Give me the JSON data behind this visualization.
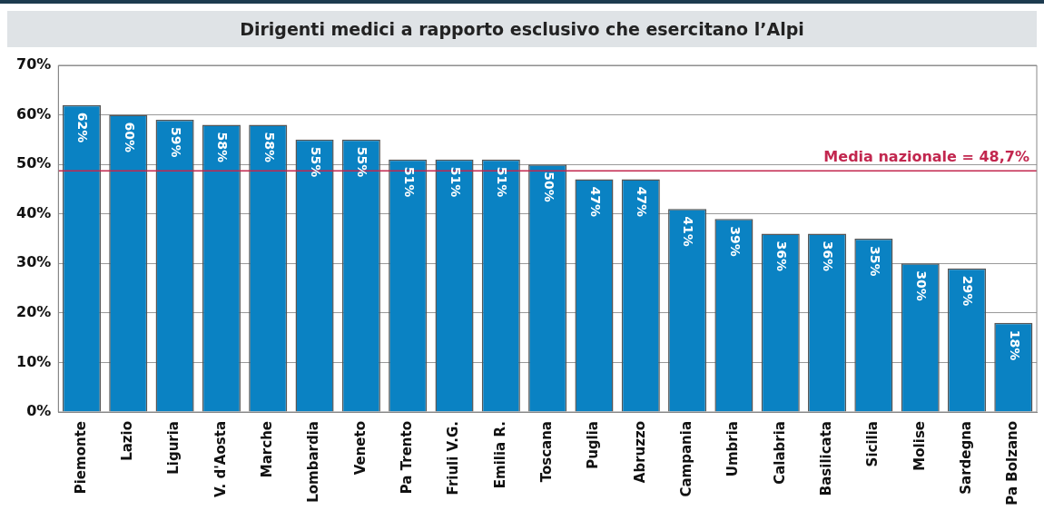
{
  "chart_data": {
    "type": "bar",
    "title": "Dirigenti medici a rapporto esclusivo che esercitano l’Alpi",
    "categories": [
      "Piemonte",
      "Lazio",
      "Liguria",
      "V. d'Aosta",
      "Marche",
      "Lombardia",
      "Veneto",
      "Pa Trento",
      "Friuli V.G.",
      "Emilia R.",
      "Toscana",
      "Puglia",
      "Abruzzo",
      "Campania",
      "Umbria",
      "Calabria",
      "Basilicata",
      "Sicilia",
      "Molise",
      "Sardegna",
      "Pa Bolzano"
    ],
    "values": [
      62,
      60,
      59,
      58,
      58,
      55,
      55,
      51,
      51,
      51,
      50,
      47,
      47,
      41,
      39,
      36,
      36,
      35,
      30,
      29,
      18
    ],
    "color": "#0a82c3",
    "ylim": [
      0,
      70
    ],
    "yticks": [
      {
        "value": 0,
        "label": "0%"
      },
      {
        "value": 10,
        "label": "10%"
      },
      {
        "value": 20,
        "label": "20%"
      },
      {
        "value": 30,
        "label": "30%"
      },
      {
        "value": 40,
        "label": "40%"
      },
      {
        "value": 50,
        "label": "50%"
      },
      {
        "value": 60,
        "label": "60%"
      },
      {
        "value": 70,
        "label": "70%"
      }
    ],
    "value_labels": [
      "62%",
      "60%",
      "59%",
      "58%",
      "58%",
      "55%",
      "55%",
      "51%",
      "51%",
      "51%",
      "50%",
      "47%",
      "47%",
      "41%",
      "39%",
      "36%",
      "36%",
      "35%",
      "30%",
      "29%",
      "18%"
    ],
    "ref_lines": [
      {
        "axis": "y",
        "value": 48.7,
        "label": "Media nazionale = 48,7%",
        "color": "#c2274f"
      }
    ],
    "grid": "y",
    "legend": false
  }
}
